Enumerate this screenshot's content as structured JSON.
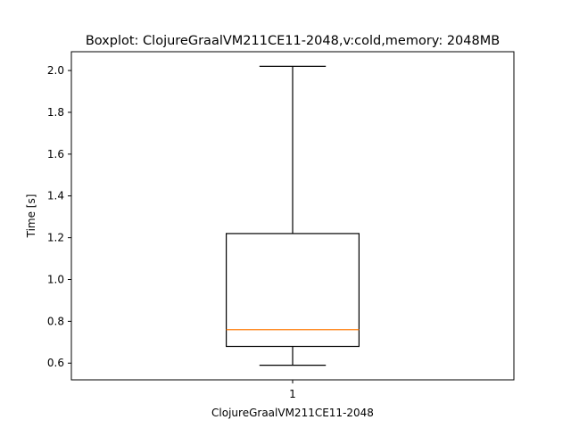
{
  "chart_data": {
    "type": "boxplot",
    "title": "Boxplot: ClojureGraalVM211CE11-2048,v:cold,memory: 2048MB",
    "xlabel": "ClojureGraalVM211CE11-2048",
    "ylabel": "Time [s]",
    "ylim": [
      0.52,
      2.09
    ],
    "yticks": [
      0.6,
      0.8,
      1.0,
      1.2,
      1.4,
      1.6,
      1.8,
      2.0
    ],
    "ytick_labels": [
      "0.6",
      "0.8",
      "1.0",
      "1.2",
      "1.4",
      "1.6",
      "1.8",
      "2.0"
    ],
    "xlim": [
      0.5,
      1.5
    ],
    "categories": [
      "1"
    ],
    "boxes": [
      {
        "position": 1,
        "whisker_low": 0.59,
        "q1": 0.68,
        "median": 0.76,
        "q3": 1.22,
        "whisker_high": 2.02
      }
    ],
    "grid": false,
    "colors": {
      "box": "#000000",
      "median": "#ff7f0e"
    }
  }
}
